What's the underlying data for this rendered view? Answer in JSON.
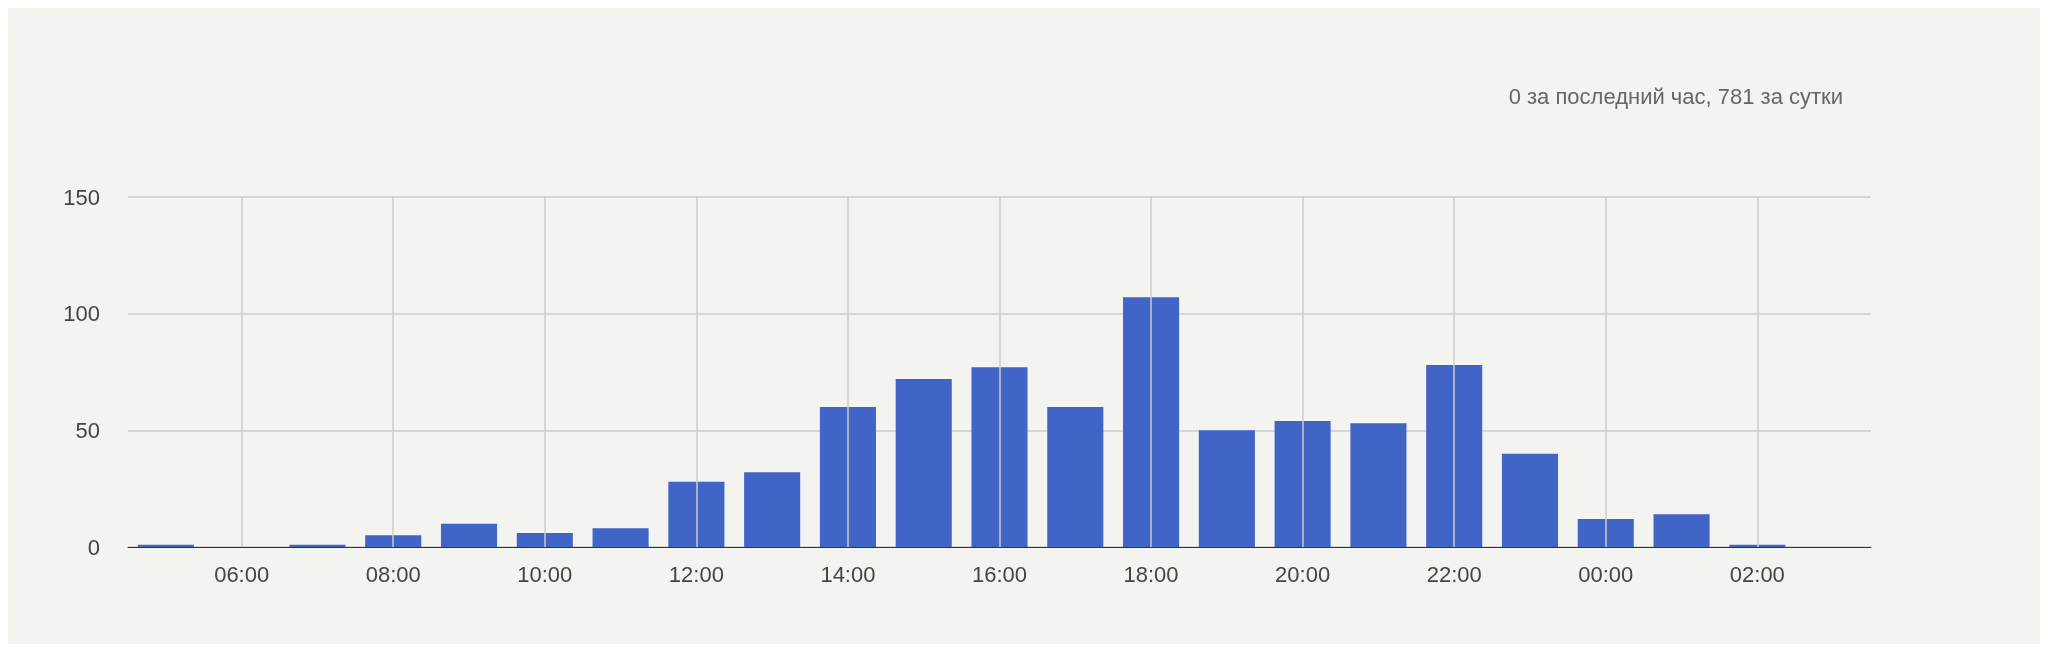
{
  "chart_data": {
    "type": "bar",
    "subtitle": "0 за последний час, 781 за сутки",
    "categories": [
      null,
      "06:00",
      null,
      "08:00",
      null,
      "10:00",
      null,
      "12:00",
      null,
      "14:00",
      null,
      "16:00",
      null,
      "18:00",
      null,
      "20:00",
      null,
      "22:00",
      null,
      "00:00",
      null,
      "02:00",
      null
    ],
    "values": [
      1,
      0,
      1,
      5,
      10,
      6,
      8,
      28,
      32,
      60,
      72,
      77,
      60,
      107,
      50,
      54,
      53,
      78,
      40,
      12,
      14,
      1,
      null
    ],
    "color": "#4165c6",
    "ylim": [
      0,
      150
    ],
    "yticks": [
      0,
      50,
      100,
      150
    ],
    "grid": true
  }
}
